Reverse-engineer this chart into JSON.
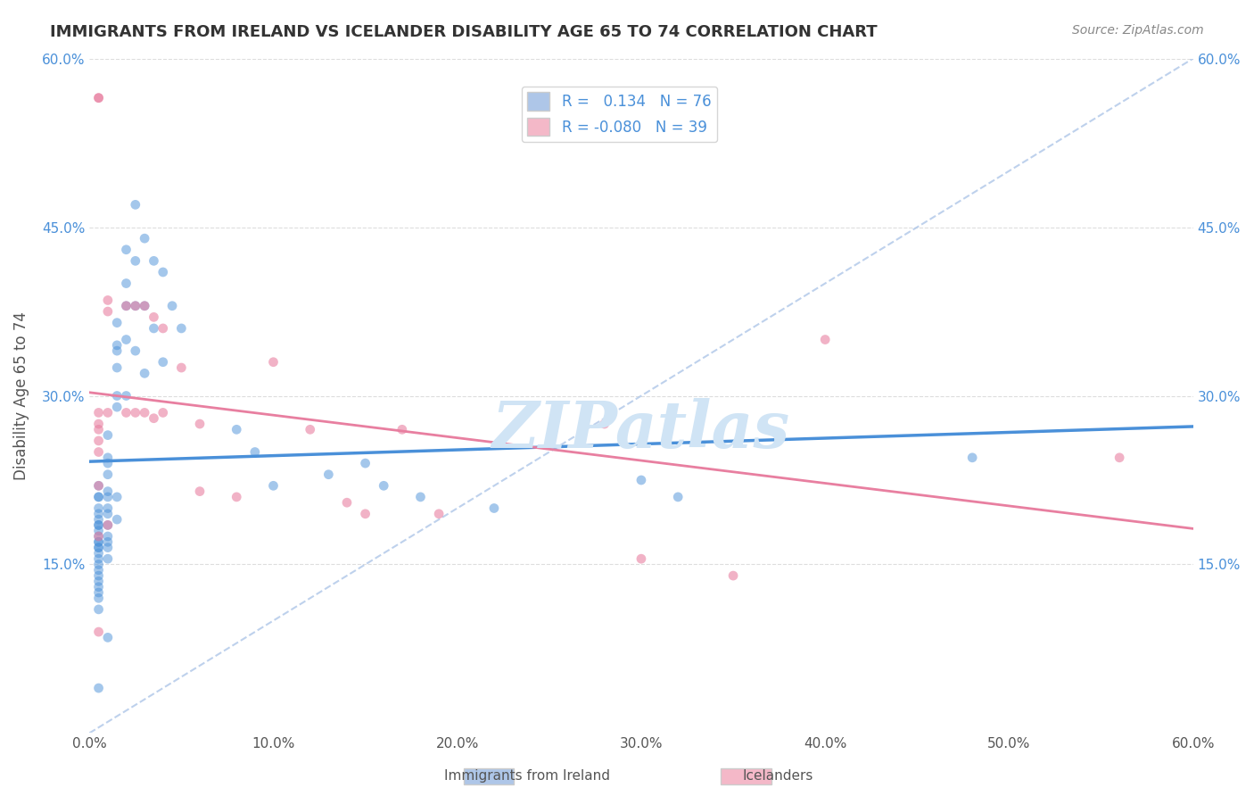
{
  "title": "IMMIGRANTS FROM IRELAND VS ICELANDER DISABILITY AGE 65 TO 74 CORRELATION CHART",
  "source": "Source: ZipAtlas.com",
  "xlabel": "",
  "ylabel": "Disability Age 65 to 74",
  "xmin": 0.0,
  "xmax": 0.6,
  "ymin": 0.0,
  "ymax": 0.6,
  "xticks": [
    0.0,
    0.1,
    0.2,
    0.3,
    0.4,
    0.5,
    0.6
  ],
  "yticks": [
    0.15,
    0.3,
    0.45,
    0.6
  ],
  "ytick_labels": [
    "15.0%",
    "30.0%",
    "45.0%",
    "60.0%"
  ],
  "xtick_labels": [
    "0.0%",
    "10.0%",
    "20.0%",
    "30.0%",
    "40.0%",
    "50.0%",
    "60.0%"
  ],
  "right_ytick_labels": [
    "15.0%",
    "30.0%",
    "45.0%",
    "60.0%"
  ],
  "legend_entries": [
    {
      "label": "Immigrants from Ireland",
      "color": "#aec6e8",
      "R": "0.134",
      "N": "76"
    },
    {
      "label": "Icelanders",
      "color": "#f4b8c8",
      "R": "-0.080",
      "N": "39"
    }
  ],
  "blue_scatter_x": [
    0.005,
    0.005,
    0.005,
    0.005,
    0.005,
    0.005,
    0.005,
    0.005,
    0.005,
    0.005,
    0.005,
    0.005,
    0.005,
    0.005,
    0.005,
    0.005,
    0.005,
    0.005,
    0.005,
    0.005,
    0.005,
    0.005,
    0.005,
    0.005,
    0.005,
    0.01,
    0.01,
    0.01,
    0.01,
    0.01,
    0.01,
    0.01,
    0.01,
    0.01,
    0.01,
    0.01,
    0.01,
    0.01,
    0.01,
    0.015,
    0.015,
    0.015,
    0.015,
    0.015,
    0.015,
    0.015,
    0.015,
    0.02,
    0.02,
    0.02,
    0.02,
    0.02,
    0.025,
    0.025,
    0.025,
    0.025,
    0.03,
    0.03,
    0.03,
    0.035,
    0.035,
    0.04,
    0.04,
    0.045,
    0.05,
    0.08,
    0.09,
    0.1,
    0.13,
    0.15,
    0.16,
    0.18,
    0.22,
    0.3,
    0.32,
    0.48
  ],
  "blue_scatter_y": [
    0.22,
    0.21,
    0.21,
    0.2,
    0.195,
    0.19,
    0.185,
    0.185,
    0.18,
    0.175,
    0.17,
    0.17,
    0.165,
    0.165,
    0.16,
    0.155,
    0.15,
    0.145,
    0.14,
    0.135,
    0.13,
    0.125,
    0.12,
    0.11,
    0.04,
    0.265,
    0.245,
    0.24,
    0.23,
    0.215,
    0.21,
    0.2,
    0.195,
    0.185,
    0.175,
    0.17,
    0.165,
    0.155,
    0.085,
    0.365,
    0.345,
    0.34,
    0.325,
    0.3,
    0.29,
    0.21,
    0.19,
    0.43,
    0.4,
    0.38,
    0.35,
    0.3,
    0.47,
    0.42,
    0.38,
    0.34,
    0.44,
    0.38,
    0.32,
    0.42,
    0.36,
    0.41,
    0.33,
    0.38,
    0.36,
    0.27,
    0.25,
    0.22,
    0.23,
    0.24,
    0.22,
    0.21,
    0.2,
    0.225,
    0.21,
    0.245
  ],
  "pink_scatter_x": [
    0.005,
    0.005,
    0.005,
    0.005,
    0.005,
    0.005,
    0.005,
    0.005,
    0.005,
    0.005,
    0.01,
    0.01,
    0.01,
    0.01,
    0.02,
    0.02,
    0.025,
    0.025,
    0.03,
    0.03,
    0.035,
    0.035,
    0.04,
    0.04,
    0.05,
    0.06,
    0.06,
    0.08,
    0.1,
    0.12,
    0.14,
    0.15,
    0.17,
    0.19,
    0.28,
    0.3,
    0.35,
    0.4,
    0.56
  ],
  "pink_scatter_y": [
    0.565,
    0.565,
    0.285,
    0.275,
    0.27,
    0.26,
    0.25,
    0.22,
    0.175,
    0.09,
    0.385,
    0.375,
    0.285,
    0.185,
    0.38,
    0.285,
    0.38,
    0.285,
    0.38,
    0.285,
    0.37,
    0.28,
    0.36,
    0.285,
    0.325,
    0.275,
    0.215,
    0.21,
    0.33,
    0.27,
    0.205,
    0.195,
    0.27,
    0.195,
    0.275,
    0.155,
    0.14,
    0.35,
    0.245
  ],
  "blue_line_color": "#4a90d9",
  "pink_line_color": "#e87fa0",
  "dashed_line_color": "#aec6e8",
  "watermark": "ZIPatlas",
  "watermark_color": "#d0e4f5",
  "background_color": "#ffffff",
  "grid_color": "#dddddd"
}
